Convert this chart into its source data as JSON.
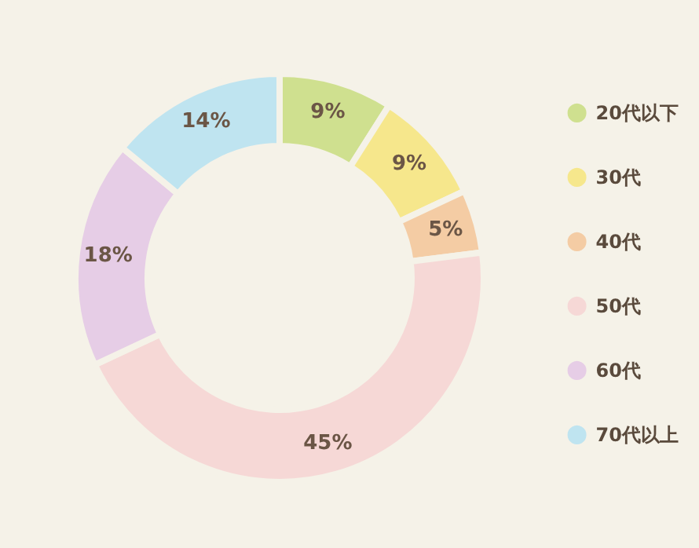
{
  "chart_data": {
    "type": "donut",
    "categories": [
      "20代以下",
      "30代",
      "40代",
      "50代",
      "60代",
      "70代以上"
    ],
    "values": [
      9,
      9,
      5,
      45,
      18,
      14
    ],
    "value_labels": [
      "9%",
      "9%",
      "5%",
      "45%",
      "18%",
      "14%"
    ],
    "colors": [
      "#cfe08f",
      "#f6e78c",
      "#f4cca4",
      "#f6d8d6",
      "#e6cde6",
      "#bfe4f0"
    ],
    "legend": "right"
  }
}
